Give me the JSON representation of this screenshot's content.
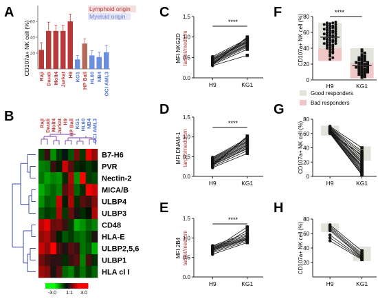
{
  "panels": {
    "A": {
      "letter": "A",
      "ylabel": "CD107a+ NK cell (%)",
      "legend": [
        {
          "label": "Lymphoid origin",
          "color": "#b73a3a",
          "bg": "#f2dede"
        },
        {
          "label": "Myeloid origin",
          "color": "#6c7fd6",
          "bg": "#e6e6f7"
        }
      ]
    },
    "B": {
      "letter": "B",
      "colorbar_ticks": [
        "-3.0",
        "1:1",
        "3.0"
      ]
    },
    "C": {
      "letter": "C",
      "ylabel": "MFI NKG2D",
      "ylabel2": "target/medium",
      "sig": "****"
    },
    "D": {
      "letter": "D",
      "ylabel": "MFI DNAM-1",
      "ylabel2": "target/meddium",
      "sig": "****"
    },
    "E": {
      "letter": "E",
      "ylabel": "MFI 2B4",
      "ylabel2": "target/medium",
      "sig": "****"
    },
    "F": {
      "letter": "F",
      "ylabel": "CD107a+ NK cell (%)",
      "sig": "****",
      "legend": [
        {
          "label": "Good responders",
          "color": "#e3e3dc"
        },
        {
          "label": "Bad responders",
          "color": "#f0c6c6"
        }
      ]
    },
    "G": {
      "letter": "G",
      "ylabel": "CD107a+ NK cell (%)"
    },
    "H": {
      "letter": "H",
      "ylabel": "CD107a+ NK cell (%)"
    }
  },
  "chart_data": [
    {
      "id": "A",
      "type": "bar",
      "ylabel": "CD107a+ NK cell (%)",
      "ylim": [
        0,
        80
      ],
      "yticks": [
        20,
        40,
        60
      ],
      "categories": [
        "Raji",
        "Daudi",
        "Molt4",
        "Jurkat",
        "H9",
        "KG1",
        "HP Ball",
        "HL60",
        "NB4",
        "OCI AML3"
      ],
      "values": [
        24,
        48,
        48,
        48,
        60,
        12,
        32,
        17,
        15,
        21
      ],
      "errors": [
        9,
        11,
        7,
        7,
        9,
        5,
        6,
        6,
        6,
        9
      ],
      "series_colors": [
        "#b73a3a",
        "#b73a3a",
        "#b73a3a",
        "#b73a3a",
        "#b73a3a",
        "#6c8ee0",
        "#b56a5a",
        "#6c8ee0",
        "#6c8ee0",
        "#6c8ee0"
      ],
      "label_colors": [
        "#b73a3a",
        "#b73a3a",
        "#b73a3a",
        "#b73a3a",
        "#b73a3a",
        "#4a70d6",
        "#b73a3a",
        "#4a70d6",
        "#4a70d6",
        "#4a70d6"
      ]
    },
    {
      "id": "B",
      "type": "heatmap",
      "columns": [
        "Raji",
        "Daudi",
        "Molt4",
        "Jurkat",
        "H9",
        "HP Ball",
        "KG1",
        "HL60",
        "NB4",
        "OCI AML3"
      ],
      "column_colors": [
        "#b73a3a",
        "#b73a3a",
        "#b73a3a",
        "#b73a3a",
        "#b73a3a",
        "#b73a3a",
        "#4a70d6",
        "#4a70d6",
        "#4a70d6",
        "#4a70d6"
      ],
      "rows": [
        "B7-H6",
        "PVR",
        "Nectin-2",
        "MICA/B",
        "ULBP4",
        "ULBP3",
        "CD48",
        "HLA-E",
        "ULBP2,5,6",
        "ULBP1",
        "HLA cl I"
      ],
      "values": [
        [
          -0.5,
          0.4,
          -1.0,
          -0.4,
          0.0,
          -0.6,
          0.8,
          -0.4,
          1.6,
          1.0
        ],
        [
          -0.9,
          -0.8,
          0.4,
          -0.2,
          1.4,
          0.6,
          -0.3,
          -0.2,
          -0.4,
          -0.2
        ],
        [
          -0.8,
          -1.1,
          -0.9,
          -1.0,
          -0.3,
          1.2,
          -1.0,
          2.6,
          -0.4,
          -0.5
        ],
        [
          -1.2,
          -0.9,
          -0.7,
          -0.9,
          0.6,
          1.0,
          -0.7,
          -0.3,
          1.7,
          1.4
        ],
        [
          -1.0,
          -0.6,
          -0.7,
          1.4,
          -0.2,
          1.2,
          -0.3,
          0.6,
          0.4,
          0.9
        ],
        [
          -0.6,
          -0.4,
          -0.5,
          1.2,
          -0.4,
          0.7,
          0.2,
          -0.3,
          -0.1,
          1.2
        ],
        [
          1.3,
          1.6,
          0.7,
          0.8,
          0.4,
          -0.4,
          -1.2,
          -1.0,
          -0.7,
          -0.9
        ],
        [
          1.0,
          1.2,
          0.6,
          -0.2,
          -0.6,
          -0.4,
          -0.7,
          -0.8,
          -0.5,
          0.2
        ],
        [
          1.4,
          1.0,
          1.8,
          0.5,
          0.2,
          0.6,
          0.4,
          -0.8,
          -0.6,
          -1.2
        ],
        [
          0.8,
          0.5,
          0.3,
          0.3,
          -0.3,
          0.4,
          0.6,
          -0.9,
          0.5,
          -0.3
        ],
        [
          1.1,
          0.9,
          0.2,
          0.6,
          -0.7,
          -0.9,
          -0.4,
          -0.8,
          -0.4,
          -0.7
        ]
      ],
      "color_range": [
        -3.0,
        3.0
      ]
    },
    {
      "id": "C",
      "type": "line",
      "x": [
        "H9",
        "KG1"
      ],
      "ylim": [
        0,
        1.5
      ],
      "yticks": [
        0.0,
        0.5,
        1.0,
        1.5
      ],
      "pairs": [
        [
          0.3,
          0.55
        ],
        [
          0.32,
          0.7
        ],
        [
          0.34,
          0.75
        ],
        [
          0.36,
          0.78
        ],
        [
          0.38,
          0.8
        ],
        [
          0.4,
          0.82
        ],
        [
          0.42,
          0.85
        ],
        [
          0.44,
          0.87
        ],
        [
          0.45,
          0.88
        ],
        [
          0.47,
          0.9
        ],
        [
          0.49,
          0.92
        ],
        [
          0.52,
          0.95
        ],
        [
          0.35,
          0.98
        ],
        [
          0.33,
          1.0
        ]
      ]
    },
    {
      "id": "D",
      "type": "line",
      "x": [
        "H9",
        "KG1"
      ],
      "ylim": [
        0,
        1.5
      ],
      "yticks": [
        0.0,
        0.5,
        1.0,
        1.5
      ],
      "pairs": [
        [
          0.22,
          0.58
        ],
        [
          0.25,
          0.65
        ],
        [
          0.28,
          0.7
        ],
        [
          0.3,
          0.72
        ],
        [
          0.32,
          0.75
        ],
        [
          0.34,
          0.78
        ],
        [
          0.36,
          0.8
        ],
        [
          0.38,
          0.83
        ],
        [
          0.4,
          0.86
        ],
        [
          0.42,
          0.88
        ],
        [
          0.44,
          0.9
        ],
        [
          0.46,
          0.93
        ],
        [
          0.48,
          0.96
        ],
        [
          0.3,
          0.99
        ],
        [
          0.26,
          1.02
        ]
      ]
    },
    {
      "id": "E",
      "type": "line",
      "x": [
        "H9",
        "KG1"
      ],
      "ylim": [
        0,
        1.5
      ],
      "yticks": [
        0.0,
        0.5,
        1.0,
        1.5
      ],
      "pairs": [
        [
          0.58,
          0.88
        ],
        [
          0.62,
          0.92
        ],
        [
          0.65,
          0.95
        ],
        [
          0.68,
          0.97
        ],
        [
          0.7,
          0.98
        ],
        [
          0.72,
          1.0
        ],
        [
          0.74,
          1.02
        ],
        [
          0.76,
          1.05
        ],
        [
          0.78,
          1.08
        ],
        [
          0.8,
          1.12
        ],
        [
          0.66,
          1.2
        ],
        [
          0.7,
          1.28
        ]
      ]
    },
    {
      "id": "F",
      "type": "scatter",
      "categories": [
        "H9",
        "KG1"
      ],
      "ylim": [
        0,
        80
      ],
      "yticks": [
        0,
        20,
        40,
        60,
        80
      ],
      "h9_values": [
        26,
        28,
        30,
        32,
        34,
        35,
        36,
        38,
        39,
        40,
        41,
        42,
        43,
        44,
        44,
        45,
        46,
        46,
        47,
        48,
        48,
        49,
        50,
        50,
        51,
        52,
        52,
        53,
        54,
        54,
        55,
        56,
        56,
        57,
        58,
        58,
        59,
        60,
        60,
        61,
        62,
        62,
        63,
        64,
        64,
        65,
        66,
        66,
        67,
        68,
        68,
        69,
        70,
        70,
        71,
        72,
        72,
        73
      ],
      "kg1_values": [
        3,
        4,
        5,
        6,
        7,
        8,
        9,
        10,
        10,
        11,
        12,
        12,
        13,
        14,
        14,
        15,
        16,
        16,
        17,
        18,
        18,
        19,
        20,
        20,
        21,
        22,
        22,
        23,
        24,
        25,
        26,
        27,
        28,
        29,
        30,
        32,
        34,
        36,
        38
      ],
      "bands": [
        {
          "category": "H9",
          "range": [
            40,
            72
          ],
          "shade": "good"
        },
        {
          "category": "H9",
          "range": [
            24,
            40
          ],
          "shade": "bad"
        },
        {
          "category": "KG1",
          "range": [
            22,
            40
          ],
          "shade": "good"
        },
        {
          "category": "KG1",
          "range": [
            2,
            22
          ],
          "shade": "bad"
        }
      ]
    },
    {
      "id": "G",
      "type": "line",
      "x": [
        "H9",
        "KG1"
      ],
      "ylim": [
        0,
        80
      ],
      "yticks": [
        0,
        20,
        40,
        60,
        80
      ],
      "pairs": [
        [
          70,
          40
        ],
        [
          69,
          35
        ],
        [
          68,
          32
        ],
        [
          68,
          28
        ],
        [
          67,
          25
        ],
        [
          66,
          22
        ],
        [
          66,
          18
        ],
        [
          65,
          15
        ],
        [
          64,
          12
        ],
        [
          64,
          10
        ],
        [
          63,
          8
        ],
        [
          62,
          6
        ],
        [
          62,
          5
        ],
        [
          61,
          3
        ],
        [
          60,
          2
        ],
        [
          60,
          30
        ],
        [
          65,
          20
        ],
        [
          63,
          14
        ]
      ]
    },
    {
      "id": "H",
      "type": "line",
      "x": [
        "H9",
        "KG1"
      ],
      "ylim": [
        0,
        80
      ],
      "yticks": [
        20,
        40,
        60,
        80
      ],
      "pairs": [
        [
          72,
          36
        ],
        [
          70,
          32
        ],
        [
          68,
          30
        ],
        [
          66,
          28
        ],
        [
          64,
          27
        ],
        [
          58,
          26
        ],
        [
          54,
          25
        ],
        [
          50,
          24
        ]
      ]
    }
  ]
}
